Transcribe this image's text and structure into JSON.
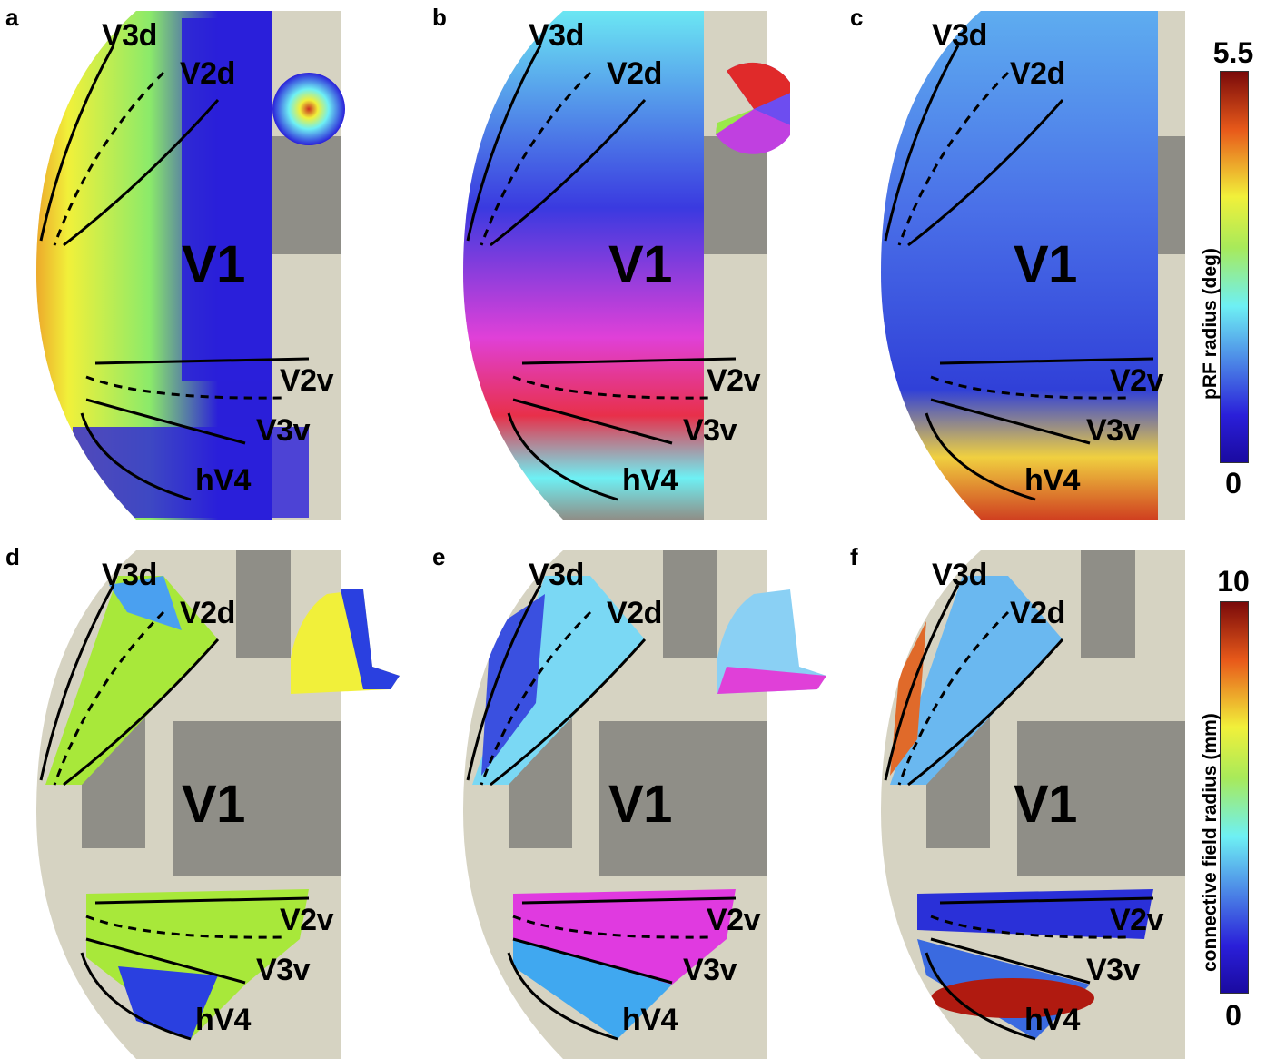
{
  "panels": [
    {
      "letter": "a"
    },
    {
      "letter": "b"
    },
    {
      "letter": "c"
    },
    {
      "letter": "d"
    },
    {
      "letter": "e"
    },
    {
      "letter": "f"
    }
  ],
  "area_labels": {
    "v3d": "V3d",
    "v2d": "V2d",
    "v1": "V1",
    "v2v": "V2v",
    "v3v": "V3v",
    "hv4": "hV4"
  },
  "colorbars": {
    "prf": {
      "max": "5.5",
      "min": "0",
      "title": "pRF radius (deg)"
    },
    "cf": {
      "max": "10",
      "min": "0",
      "title": "connective field radius (mm)"
    }
  },
  "colors": {
    "brain_light": "#d6d3c2",
    "brain_dark": "#8f8e87",
    "jet_blue": "#2a1fd9",
    "jet_cyan": "#6ef0f4",
    "jet_yellow": "#f1f03a",
    "jet_red": "#c8301f",
    "magenta": "#e040d8"
  }
}
